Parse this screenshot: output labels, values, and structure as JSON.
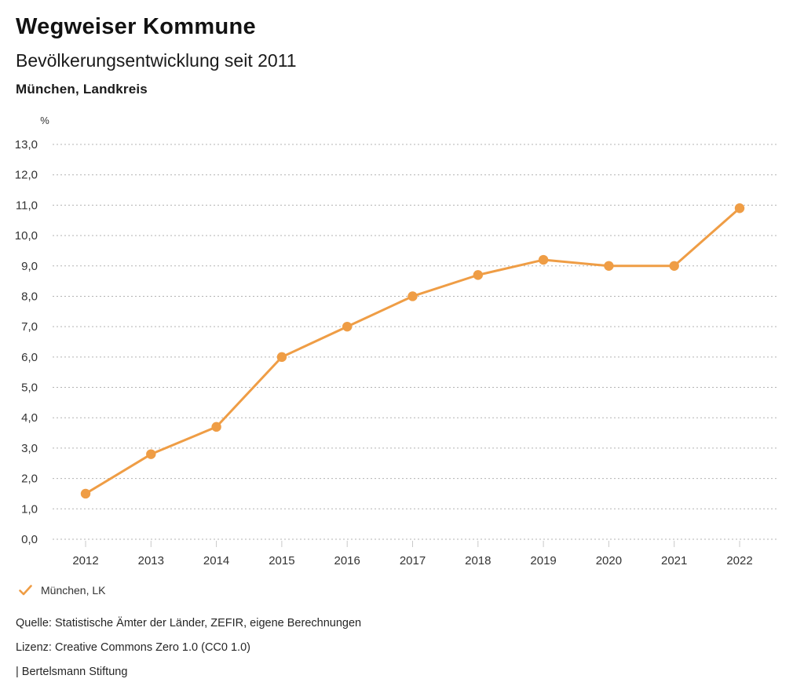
{
  "header": {
    "title": "Wegweiser Kommune",
    "subtitle": "Bevölkerungsentwicklung seit 2011",
    "region": "München, Landkreis"
  },
  "legend": {
    "items": [
      {
        "label": "München, LK",
        "icon": "check-icon",
        "color": "#ef9d45"
      }
    ]
  },
  "footer": {
    "source": "Quelle: Statistische Ämter der Länder, ZEFIR, eigene Berechnungen",
    "license": "Lizenz: Creative Commons Zero 1.0 (CC0 1.0)",
    "attribution": "| Bertelsmann Stiftung"
  },
  "chart_data": {
    "type": "line",
    "title": "Bevölkerungsentwicklung seit 2011",
    "x": [
      "2012",
      "2013",
      "2014",
      "2015",
      "2016",
      "2017",
      "2018",
      "2019",
      "2020",
      "2021",
      "2022"
    ],
    "series": [
      {
        "name": "München, LK",
        "color": "#ef9d45",
        "values": [
          1.5,
          2.8,
          3.7,
          6.0,
          7.0,
          8.0,
          8.7,
          9.2,
          9.0,
          9.0,
          10.9
        ]
      }
    ],
    "xlabel": "",
    "ylabel": "%",
    "ylim": [
      0,
      13
    ],
    "ytick_step": 1,
    "ytick_labels": [
      "0,0",
      "1,0",
      "2,0",
      "3,0",
      "4,0",
      "5,0",
      "6,0",
      "7,0",
      "8,0",
      "9,0",
      "10,0",
      "11,0",
      "12,0",
      "13,0"
    ],
    "grid": "horizontal-dotted",
    "legend_position": "bottom-left",
    "colors": {
      "grid": "#b3b3b3",
      "tick": "#c9c9c9",
      "axis_text": "#333333",
      "text": "#1a1a1a"
    }
  }
}
